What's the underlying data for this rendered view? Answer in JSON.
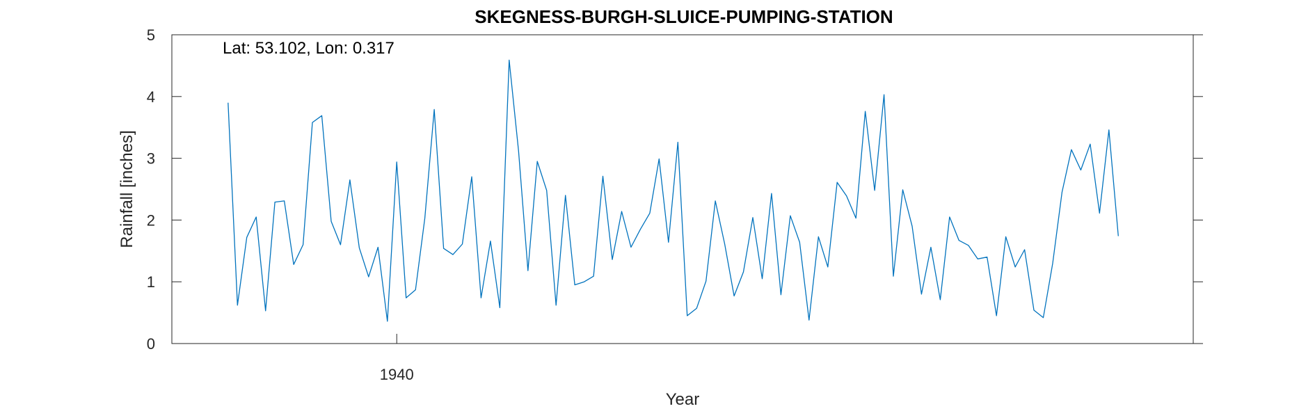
{
  "chart_data": {
    "type": "line",
    "title": "SKEGNESS-BURGH-SLUICE-PUMPING-STATION",
    "annotation": "Lat: 53.102, Lon: 0.317",
    "xlabel": "Year",
    "ylabel": "Rainfall [inches]",
    "xlim": [
      1916,
      2025
    ],
    "ylim": [
      0,
      5
    ],
    "x_ticks": [
      1940
    ],
    "x_tick_labels": [
      "1940"
    ],
    "y_ticks": [
      0,
      1,
      2,
      3,
      4,
      5
    ],
    "y_tick_labels": [
      "0",
      "1",
      "2",
      "3",
      "4",
      "5"
    ],
    "grid": false,
    "line_color": "#0072BD",
    "series": [
      {
        "x": [
          1922,
          1923,
          1924,
          1925,
          1926,
          1927,
          1928,
          1929,
          1930,
          1931,
          1932,
          1933,
          1934,
          1935,
          1936,
          1937,
          1938,
          1939,
          1940,
          1941,
          1942,
          1943,
          1944,
          1945,
          1946,
          1947,
          1948,
          1949,
          1950,
          1951,
          1952,
          1953,
          1954,
          1955,
          1956,
          1957,
          1958,
          1959,
          1960,
          1961,
          1962,
          1963,
          1964,
          1965,
          1966,
          1967,
          1968,
          1969,
          1970,
          1971,
          1972,
          1973,
          1974,
          1975,
          1976,
          1977,
          1978,
          1979,
          1980,
          1981,
          1982,
          1983,
          1984,
          1985,
          1986,
          1987,
          1988,
          1989,
          1990,
          1991,
          1992,
          1993,
          1994,
          1995,
          1996,
          1997,
          1998,
          1999,
          2000,
          2001,
          2002,
          2003,
          2004,
          2005,
          2006,
          2007,
          2008,
          2009,
          2010,
          2011,
          2012,
          2013,
          2014,
          2015,
          2016,
          2017
        ],
        "values": [
          3.9,
          0.62,
          1.72,
          2.05,
          0.53,
          2.29,
          2.31,
          1.28,
          1.6,
          3.58,
          3.69,
          1.98,
          1.6,
          2.65,
          1.55,
          1.08,
          1.56,
          0.36,
          2.94,
          0.74,
          0.87,
          2.03,
          3.79,
          1.54,
          1.44,
          1.61,
          2.7,
          0.74,
          1.66,
          0.58,
          4.59,
          3.12,
          1.18,
          2.95,
          2.48,
          0.62,
          2.4,
          0.95,
          1.0,
          1.09,
          2.71,
          1.36,
          2.14,
          1.56,
          1.85,
          2.11,
          2.99,
          1.64,
          3.26,
          0.45,
          0.57,
          1.01,
          2.31,
          1.61,
          0.77,
          1.16,
          2.04,
          1.05,
          2.43,
          0.79,
          2.07,
          1.64,
          0.38,
          1.73,
          1.24,
          2.61,
          2.39,
          2.03,
          3.76,
          2.48,
          4.03,
          1.09,
          2.49,
          1.9,
          0.8,
          1.56,
          0.71,
          2.05,
          1.67,
          1.59,
          1.37,
          1.4,
          0.45,
          1.73,
          1.24,
          1.52,
          0.54,
          0.42,
          1.3,
          2.45,
          3.14,
          2.81,
          3.23,
          2.11,
          3.46,
          1.74
        ]
      }
    ]
  }
}
